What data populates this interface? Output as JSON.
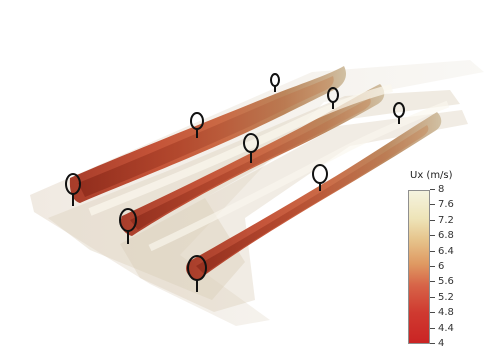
{
  "legend": {
    "title": "Ux (m/s)",
    "ticks": [
      "8",
      "7.6",
      "7.2",
      "6.8",
      "6.4",
      "6",
      "5.6",
      "5.2",
      "4.8",
      "4.4",
      "4"
    ]
  },
  "colors": {
    "high_speed": "#f5f3df",
    "mid_speed": "#df9962",
    "low_speed": "#ca2424",
    "turbine_outline": "#111111"
  }
}
